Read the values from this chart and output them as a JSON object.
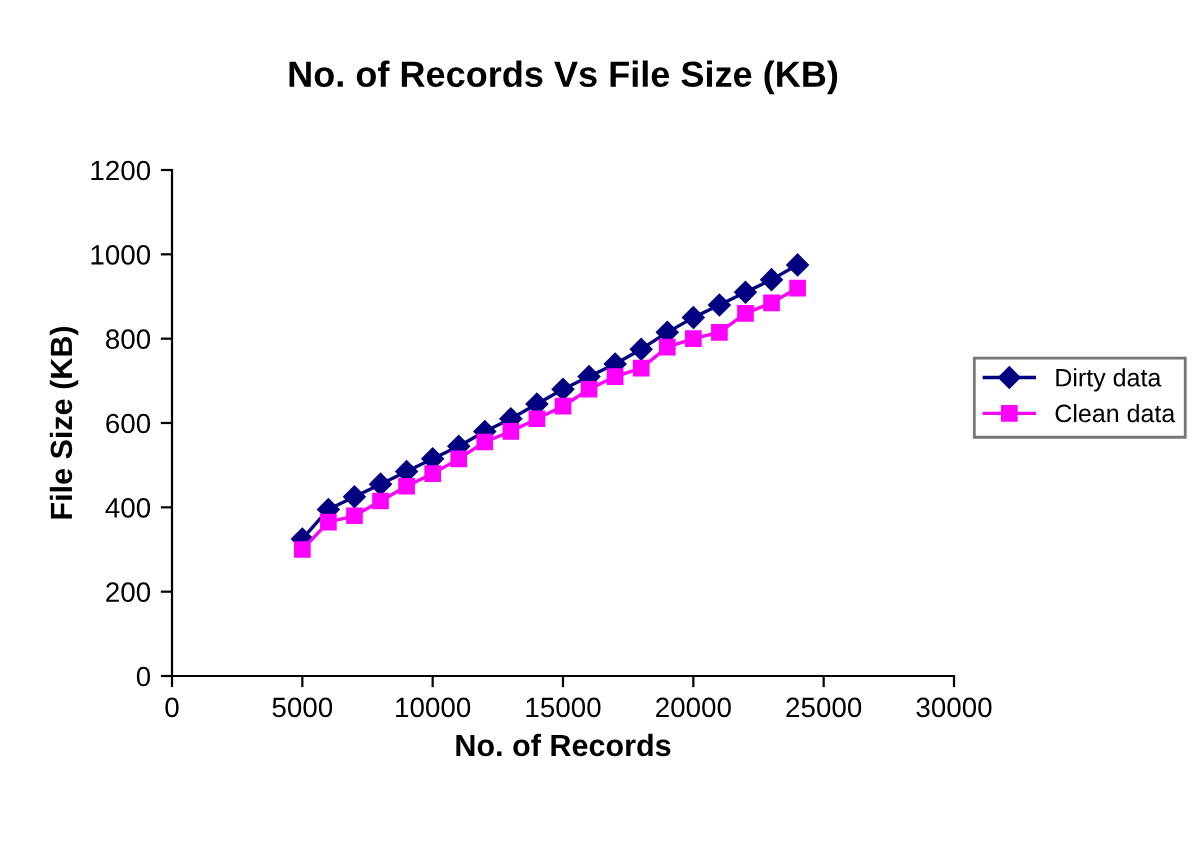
{
  "chart_data": {
    "type": "line",
    "title": "No. of Records Vs File Size (KB)",
    "xlabel": "No. of Records",
    "ylabel": "File Size (KB)",
    "x": [
      5000,
      6000,
      7000,
      8000,
      9000,
      10000,
      11000,
      12000,
      13000,
      14000,
      15000,
      16000,
      17000,
      18000,
      19000,
      20000,
      21000,
      22000,
      23000,
      24000
    ],
    "series": [
      {
        "name": "Dirty data",
        "color": "#000080",
        "marker": "diamond",
        "values": [
          325,
          395,
          425,
          455,
          485,
          515,
          545,
          580,
          610,
          645,
          680,
          710,
          740,
          775,
          815,
          850,
          880,
          910,
          940,
          975
        ]
      },
      {
        "name": "Clean data",
        "color": "#ff00ff",
        "marker": "square",
        "values": [
          300,
          365,
          380,
          415,
          450,
          480,
          515,
          555,
          580,
          610,
          640,
          680,
          710,
          730,
          780,
          800,
          815,
          860,
          885,
          920
        ]
      }
    ],
    "xlim": [
      0,
      30000
    ],
    "xticks": [
      0,
      5000,
      10000,
      15000,
      20000,
      25000,
      30000
    ],
    "ylim": [
      0,
      1200
    ],
    "yticks": [
      0,
      200,
      400,
      600,
      800,
      1000,
      1200
    ],
    "grid": false,
    "legend": "right"
  }
}
